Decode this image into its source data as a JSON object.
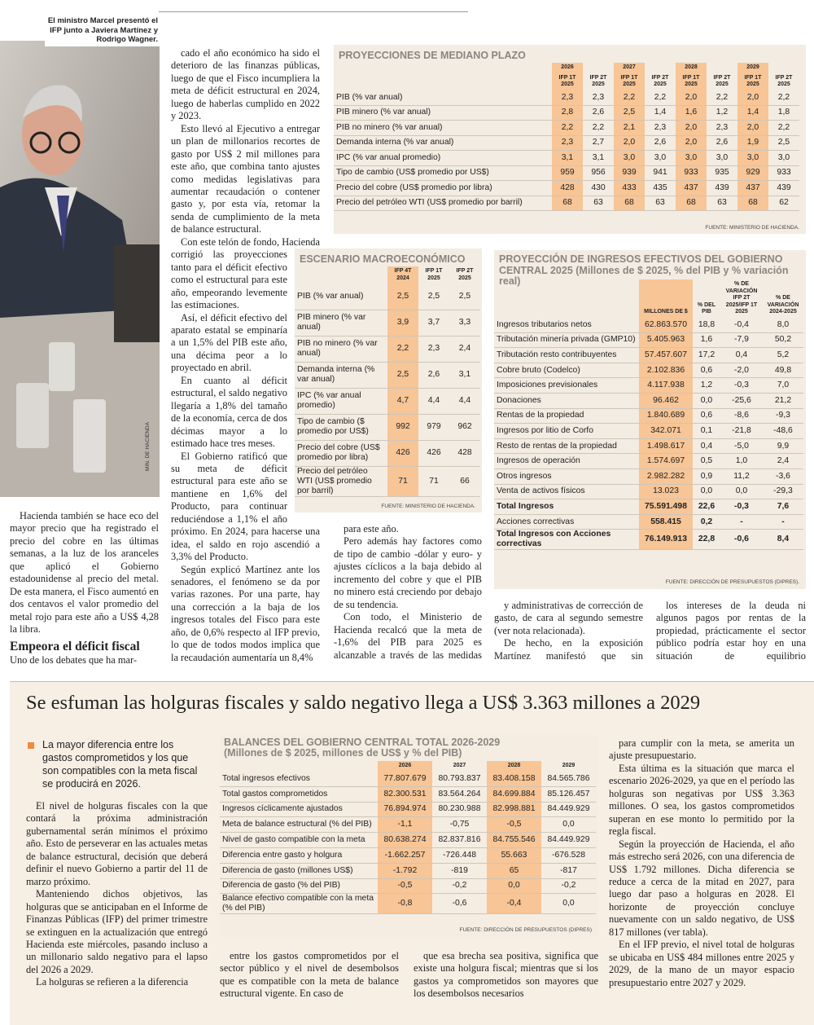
{
  "photo": {
    "caption": "El ministro Marcel presentó el IFP junto a Javiera Martínez y Rodrigo Wagner.",
    "credit": "MIN. DE HACIENDA"
  },
  "article": {
    "col1": [
      "Hacienda también se hace eco del mayor precio que ha registrado el precio del cobre en las últimas semanas, a la luz de los aranceles que aplicó el Gobierno estadounidense al precio del metal. De esta manera, el Fisco aumentó en dos centavos el valor promedio del metal rojo para este año a US$ 4,28 la libra."
    ],
    "subheading": "Empeora el déficit fiscal",
    "col1_after": [
      "Uno de los debates que ha mar-"
    ],
    "col2": [
      "cado el año económico ha sido el deterioro de las finanzas públicas, luego de que el Fisco incumpliera la meta de déficit estructural en 2024, luego de haberlas cumplido en 2022 y 2023.",
      "Esto llevó al Ejecutivo a entregar un plan de millonarios recortes de gasto por US$ 2 mil millones para este año, que combina tanto ajustes como medidas legislativas para aumentar recaudación o contener gasto y, por esta vía, retomar la senda de cumplimiento de la meta de balance estructural.",
      "Con este telón de fondo, Hacienda corrigió las proyecciones tanto para el déficit efectivo como el estructural para este año, empeorando levemente las estimaciones.",
      "Así, el déficit efectivo del aparato estatal se empinaría a un 1,5% del PIB este año, una décima peor a lo proyectado en abril.",
      "En cuanto al déficit estructural, el saldo negativo llegaría a 1,8% del tamaño de la economía, cerca de dos décimas mayor a lo estimado hace tres meses.",
      "El Gobierno ratificó que su meta de déficit estructural para este año se mantiene en 1,6% del Producto, para continuar reduciéndose a 1,1% el año próximo. En 2024, para hacerse una idea, el saldo en rojo ascendió a 3,3% del Producto.",
      "Según explicó Martínez ante los senadores, el fenómeno se da por varias razones. Por una parte, hay una corrección a la baja de los ingresos totales del Fisco para este año, de 0,6% respecto al IFP previo, lo que de todos modos implica que la recaudación aumentaría un 8,4%"
    ],
    "col3": [
      "para este año.",
      "Pero además hay factores como de tipo de cambio -dólar y euro- y ajustes cíclicos a la baja debido al incremento del cobre y que el PIB no minero está creciendo por debajo de su tendencia.",
      "Con todo, el Ministerio de Hacienda recalcó que la meta de -1,6% del PIB para 2025 es alcanzable a través de las medidas legislativas"
    ],
    "col4": [
      "y administrativas de corrección de gasto, de cara al segundo semestre (ver nota relacionada).",
      "De hecho, en la exposición Martínez manifestó que sin incorporar"
    ],
    "col5": [
      "los intereses de la deuda ni algunos pagos por rentas de la propiedad, prácticamente el sector público podría estar hoy en una situación de equilibrio presupuestario."
    ]
  },
  "projections": {
    "title": "PROYECCIONES DE MEDIANO PLAZO",
    "years": [
      "2026",
      "2027",
      "2028",
      "2029"
    ],
    "subheaders": [
      "IFP 1T 2025",
      "IFP 2T 2025",
      "IFP 1T 2025",
      "IFP 2T 2025",
      "IFP 1T 2025",
      "IFP 2T 2025",
      "IFP 1T 2025",
      "IFP 2T 2025"
    ],
    "rows": [
      {
        "label": "PIB (% var anual)",
        "values": [
          "2,3",
          "2,3",
          "2,2",
          "2,2",
          "2,0",
          "2,2",
          "2,0",
          "2,2"
        ]
      },
      {
        "label": "PIB minero (% var anual)",
        "values": [
          "2,8",
          "2,6",
          "2,5",
          "1,4",
          "1,6",
          "1,2",
          "1,4",
          "1,8"
        ]
      },
      {
        "label": "PIB no minero (% var anual)",
        "values": [
          "2,2",
          "2,2",
          "2,1",
          "2,3",
          "2,0",
          "2,3",
          "2,0",
          "2,2"
        ]
      },
      {
        "label": "Demanda interna (% var anual)",
        "values": [
          "2,3",
          "2,7",
          "2,0",
          "2,6",
          "2,0",
          "2,6",
          "1,9",
          "2,5"
        ]
      },
      {
        "label": "IPC (% var anual promedio)",
        "values": [
          "3,1",
          "3,1",
          "3,0",
          "3,0",
          "3,0",
          "3,0",
          "3,0",
          "3,0"
        ]
      },
      {
        "label": "Tipo de cambio (US$ promedio por US$)",
        "values": [
          "959",
          "956",
          "939",
          "941",
          "933",
          "935",
          "929",
          "933"
        ]
      },
      {
        "label": "Precio del cobre (US$ promedio por libra)",
        "values": [
          "428",
          "430",
          "433",
          "435",
          "437",
          "439",
          "437",
          "439"
        ]
      },
      {
        "label": "Precio del petróleo WTI (US$ promedio por barril)",
        "values": [
          "68",
          "63",
          "68",
          "63",
          "68",
          "63",
          "68",
          "62"
        ]
      }
    ],
    "source": "FUENTE: MINISTERIO DE HACIENDA."
  },
  "macro": {
    "title": "ESCENARIO MACROECONÓMICO",
    "headers": [
      "IFP 4T 2024",
      "IFP 1T 2025",
      "IFP 2T 2025"
    ],
    "rows": [
      {
        "label": "PIB (% var anual)",
        "values": [
          "2,5",
          "2,5",
          "2,5"
        ]
      },
      {
        "label": "PIB minero (% var anual)",
        "values": [
          "3,9",
          "3,7",
          "3,3"
        ]
      },
      {
        "label": "PIB no minero (% var anual)",
        "values": [
          "2,2",
          "2,3",
          "2,4"
        ]
      },
      {
        "label": "Demanda interna (% var anual)",
        "values": [
          "2,5",
          "2,6",
          "3,1"
        ]
      },
      {
        "label": "IPC (% var anual promedio)",
        "values": [
          "4,7",
          "4,4",
          "4,4"
        ]
      },
      {
        "label": "Tipo de cambio ($ promedio por US$)",
        "values": [
          "992",
          "979",
          "962"
        ]
      },
      {
        "label": "Precio del cobre (US$ promedio por libra)",
        "values": [
          "426",
          "426",
          "428"
        ]
      },
      {
        "label": "Precio del petróleo WTI (US$ promedio por barril)",
        "values": [
          "71",
          "71",
          "66"
        ]
      }
    ],
    "source": "FUENTE: MINISTERIO DE HACIENDA."
  },
  "revenue": {
    "title": "PROYECCIÓN DE INGRESOS EFECTIVOS DEL GOBIERNO CENTRAL 2025 (Millones de $ 2025, % del PIB y % variación real)",
    "headers": [
      "MILLONES DE $",
      "% DEL PIB",
      "% DE VARIACIÓN IFP 2T 2025/IFP 1T 2025",
      "% DE VARIACIÓN 2024-2025"
    ],
    "rows": [
      {
        "label": "Ingresos tributarios netos",
        "values": [
          "62.863.570",
          "18,8",
          "-0,4",
          "8,0"
        ]
      },
      {
        "label": "Tributación minería privada (GMP10)",
        "values": [
          "5.405.963",
          "1,6",
          "-7,9",
          "50,2"
        ]
      },
      {
        "label": "Tributación resto contribuyentes",
        "values": [
          "57.457.607",
          "17,2",
          "0,4",
          "5,2"
        ]
      },
      {
        "label": "Cobre bruto (Codelco)",
        "values": [
          "2.102.836",
          "0,6",
          "-2,0",
          "49,8"
        ]
      },
      {
        "label": "Imposiciones previsionales",
        "values": [
          "4.117.938",
          "1,2",
          "-0,3",
          "7,0"
        ]
      },
      {
        "label": "Donaciones",
        "values": [
          "96.462",
          "0,0",
          "-25,6",
          "21,2"
        ]
      },
      {
        "label": "Rentas de la propiedad",
        "values": [
          "1.840.689",
          "0,6",
          "-8,6",
          "-9,3"
        ]
      },
      {
        "label": "Ingresos por litio de Corfo",
        "values": [
          "342.071",
          "0,1",
          "-21,8",
          "-48,6"
        ]
      },
      {
        "label": "Resto de rentas de la propiedad",
        "values": [
          "1.498.617",
          "0,4",
          "-5,0",
          "9,9"
        ]
      },
      {
        "label": "Ingresos de operación",
        "values": [
          "1.574.697",
          "0,5",
          "1,0",
          "2,4"
        ]
      },
      {
        "label": "Otros ingresos",
        "values": [
          "2.982.282",
          "0,9",
          "11,2",
          "-3,6"
        ]
      },
      {
        "label": "Venta de activos físicos",
        "values": [
          "13.023",
          "0,0",
          "0,0",
          "-29,3"
        ]
      },
      {
        "label": "Total Ingresos",
        "values": [
          "75.591.498",
          "22,6",
          "-0,3",
          "7,6"
        ]
      },
      {
        "label": "Acciones correctivas",
        "values": [
          "558.415",
          "0,2",
          "-",
          "-"
        ]
      },
      {
        "label": "Total Ingresos con Acciones correctivas",
        "values": [
          "76.149.913",
          "22,8",
          "-0,6",
          "8,4"
        ]
      }
    ],
    "source": "FUENTE: DIRECCIÓN DE PRESUPUESTOS (DIPRES)."
  },
  "bottom": {
    "headline": "Se esfuman las holguras fiscales y saldo negativo llega a US$ 3.363 millones a 2029",
    "bullet": "La mayor diferencia entre los gastos comprometidos y los que son compatibles con la meta fiscal se producirá en 2026.",
    "col1": [
      "El nivel de holguras fiscales con la que contará la próxima administración gubernamental serán mínimos el próximo año. Esto de perseverar en las actuales metas de balance estructural, decisión que deberá definir el nuevo Gobierno a partir del 11 de marzo próximo.",
      "Manteniendo dichos objetivos, las holguras que se anticipaban en el Informe de Finanzas Públicas (IFP) del primer trimestre se extinguen en la actualización que entregó Hacienda este miércoles, pasando incluso a un millonario saldo negativo para el lapso del 2026 a 2029.",
      "La holguras se refieren a la diferencia"
    ],
    "col2": [
      "entre los gastos comprometidos por el sector público y el nivel de desembolsos que es compatible con la meta de balance estructural vigente. En caso de"
    ],
    "col3": [
      "que esa brecha sea positiva, significa que existe una holgura fiscal; mientras que si los gastos ya comprometidos son mayores que los desembolsos necesarios"
    ],
    "col4": [
      "para cumplir con la meta, se amerita un ajuste presupuestario.",
      "Esta última es la situación que marca el escenario 2026-2029, ya que en el período las holguras son negativas por US$ 3.363 millones. O sea, los gastos comprometidos superan en ese monto lo permitido por la regla fiscal.",
      "Según la proyección de Hacienda, el año más estrecho será 2026, con una diferencia de US$ 1.792 millones. Dicha diferencia se reduce a cerca de la mitad en 2027, para luego dar paso a holguras en 2028. El horizonte de proyección concluye nuevamente con un saldo negativo, de US$ 817 millones (ver tabla).",
      "En el IFP previo, el nivel total de holguras se ubicaba en US$ 484 millones entre 2025 y 2029, de la mano de un mayor espacio presupuestario entre 2027 y 2029."
    ]
  },
  "balances": {
    "title": "BALANCES DEL GOBIERNO CENTRAL TOTAL 2026-2029",
    "subtitle": "(Millones de $ 2025, millones de US$ y % del PIB)",
    "years": [
      "2026",
      "2027",
      "2028",
      "2029"
    ],
    "rows": [
      {
        "label": "Total ingresos efectivos",
        "values": [
          "77.807.679",
          "80.793.837",
          "83.408.158",
          "84.565.786"
        ]
      },
      {
        "label": "Total gastos comprometidos",
        "values": [
          "82.300.531",
          "83.564.264",
          "84.699.884",
          "85.126.457"
        ]
      },
      {
        "label": "Ingresos cíclicamente ajustados",
        "values": [
          "76.894.974",
          "80.230.988",
          "82.998.881",
          "84.449.929"
        ]
      },
      {
        "label": "Meta de balance estructural (% del PIB)",
        "values": [
          "-1,1",
          "-0,75",
          "-0,5",
          "0,0"
        ]
      },
      {
        "label": "Nivel de gasto compatible con la meta",
        "values": [
          "80.638.274",
          "82.837.816",
          "84.755.546",
          "84.449.929"
        ]
      },
      {
        "label": "Diferencia entre gasto y holgura",
        "values": [
          "-1.662.257",
          "-726.448",
          "55.663",
          "-676.528"
        ]
      },
      {
        "label": "Diferencia de gasto (millones US$)",
        "values": [
          "-1.792",
          "-819",
          "65",
          "-817"
        ]
      },
      {
        "label": "Diferencia de gasto (% del PIB)",
        "values": [
          "-0,5",
          "-0,2",
          "0,0",
          "-0,2"
        ]
      },
      {
        "label": "Balance efectivo compatible con la meta (% del PIB)",
        "values": [
          "-0,8",
          "-0,6",
          "-0,4",
          "0,0"
        ]
      }
    ],
    "source": "FUENTE: DIRECCIÓN DE PRESUPUESTOS (DIPRES)"
  }
}
